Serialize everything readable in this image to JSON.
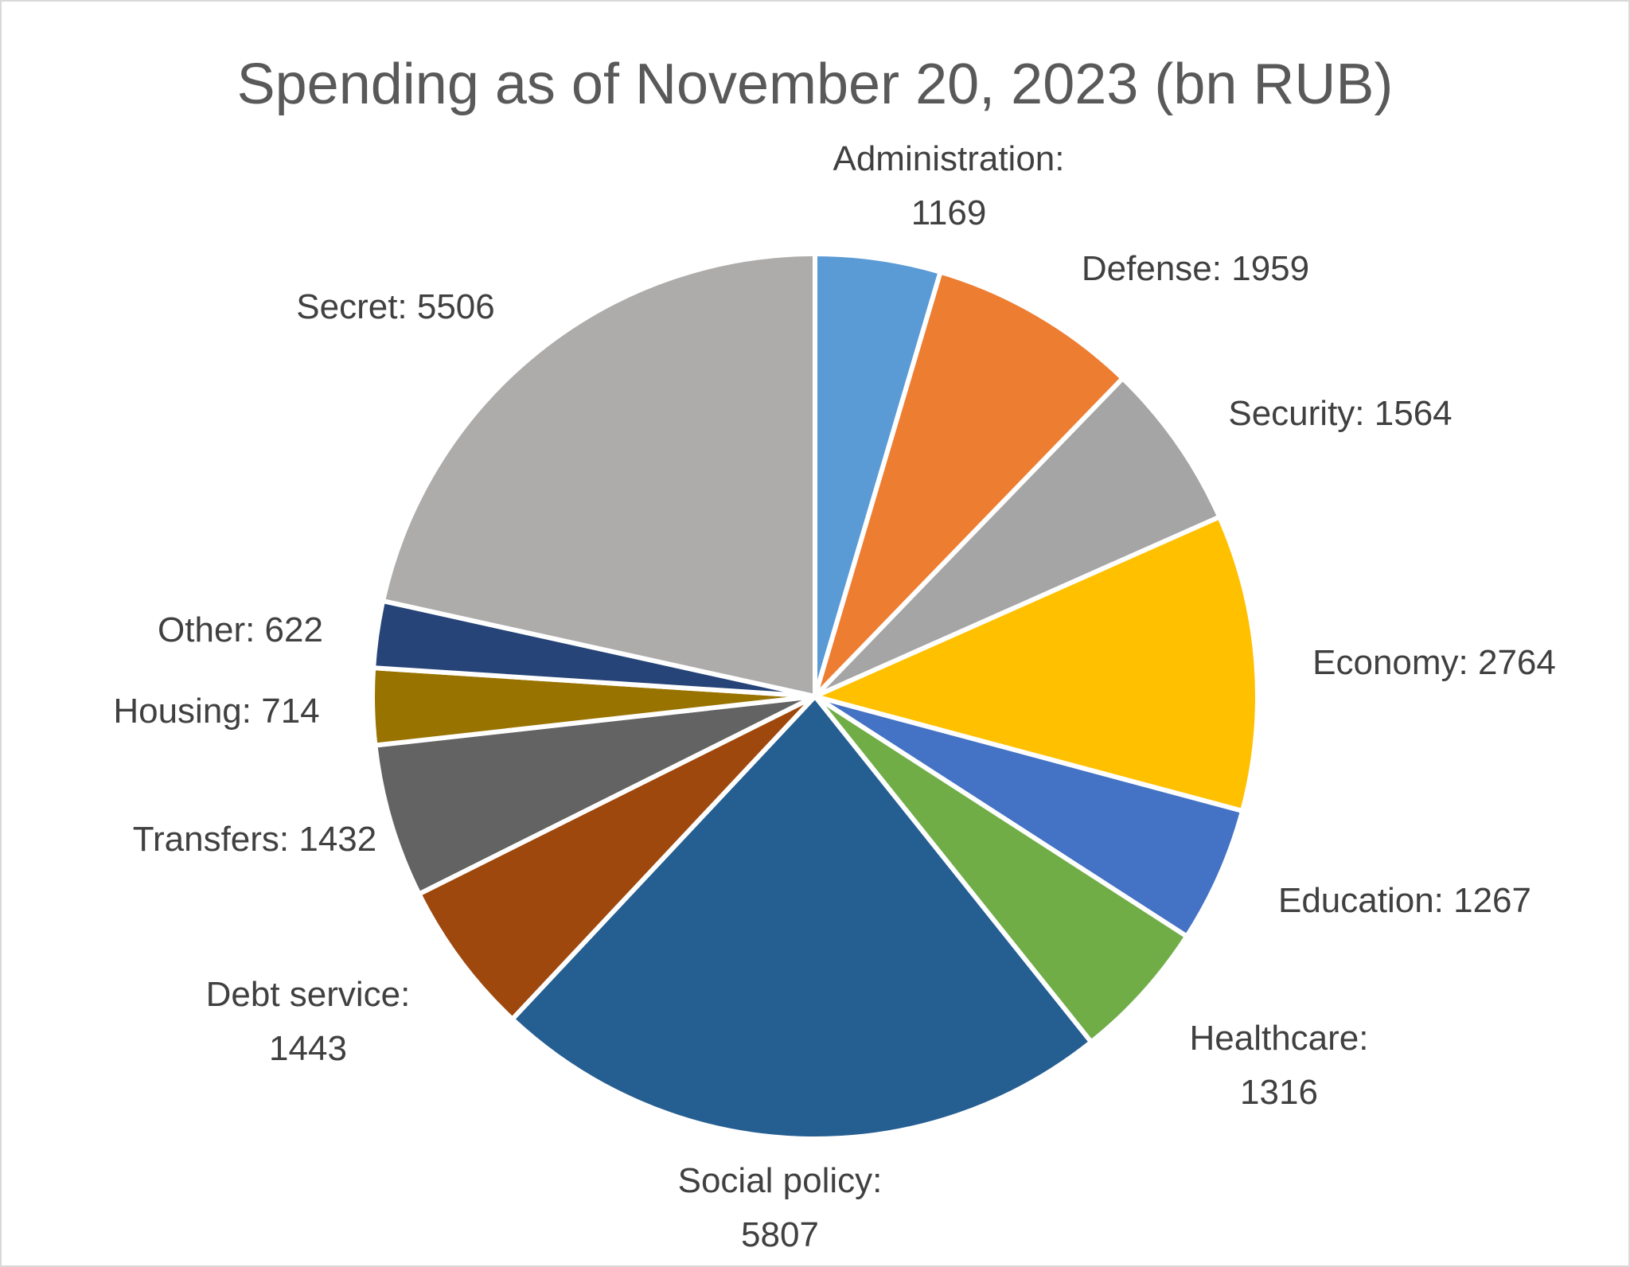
{
  "chart_data": {
    "type": "pie",
    "title": "Spending as of November 20, 2023 (bn RUB)",
    "slices": [
      {
        "label": "Administration",
        "value": 1169,
        "color": "#5b9bd5"
      },
      {
        "label": "Defense",
        "value": 1959,
        "color": "#ed7d31"
      },
      {
        "label": "Security",
        "value": 1564,
        "color": "#a5a5a5"
      },
      {
        "label": "Economy",
        "value": 2764,
        "color": "#ffc000"
      },
      {
        "label": "Education",
        "value": 1267,
        "color": "#4472c4"
      },
      {
        "label": "Healthcare",
        "value": 1316,
        "color": "#70ad47"
      },
      {
        "label": "Social policy",
        "value": 5807,
        "color": "#255e91"
      },
      {
        "label": "Debt service",
        "value": 1443,
        "color": "#9e480e"
      },
      {
        "label": "Transfers",
        "value": 1432,
        "color": "#636363"
      },
      {
        "label": "Housing",
        "value": 714,
        "color": "#997300"
      },
      {
        "label": "Other",
        "value": 622,
        "color": "#264478"
      },
      {
        "label": "Secret",
        "value": 5506,
        "color": "#aeabab"
      }
    ],
    "data_label_format": "{label}: {value}",
    "start_angle": "12 o'clock",
    "direction": "clockwise",
    "legend": "none"
  }
}
